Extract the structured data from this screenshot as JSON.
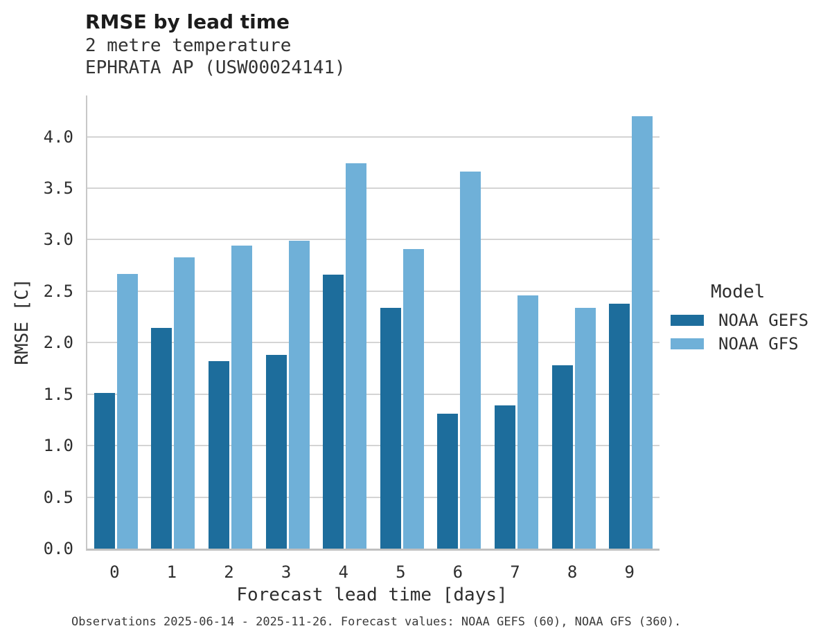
{
  "header": {
    "title": "RMSE by lead time",
    "subtitle_lines": [
      "2 metre temperature",
      "EPHRATA AP (USW00024141)"
    ]
  },
  "footer": {
    "caption": "Observations 2025-06-14 - 2025-11-26. Forecast values: NOAA GEFS (60), NOAA GFS (360)."
  },
  "colors": {
    "noaa_gefs": "#1d6d9c",
    "noaa_gfs": "#6fb0d8",
    "gridline": "#d4d4d4",
    "axis_spine": "#c0c0c0",
    "text": "#2e2e2e"
  },
  "chart_data": {
    "type": "bar",
    "title": "RMSE by lead time",
    "subtitle": "2 metre temperature",
    "station": "EPHRATA AP (USW00024141)",
    "categories": [
      "0",
      "1",
      "2",
      "3",
      "4",
      "5",
      "6",
      "7",
      "8",
      "9"
    ],
    "series": [
      {
        "name": "NOAA GEFS",
        "color": "#1d6d9c",
        "values": [
          1.51,
          2.14,
          1.82,
          1.88,
          2.66,
          2.34,
          1.31,
          1.39,
          1.78,
          2.38
        ]
      },
      {
        "name": "NOAA GFS",
        "color": "#6fb0d8",
        "values": [
          2.67,
          2.83,
          2.94,
          2.99,
          3.74,
          2.91,
          3.66,
          2.46,
          2.34,
          4.2
        ]
      }
    ],
    "xlabel": "Forecast lead time [days]",
    "ylabel": "RMSE [C]",
    "ylim": [
      0,
      4.4
    ],
    "yticks": [
      0.0,
      0.5,
      1.0,
      1.5,
      2.0,
      2.5,
      3.0,
      3.5,
      4.0
    ],
    "grid": true,
    "legend_title": "Model",
    "legend_position": "right"
  }
}
